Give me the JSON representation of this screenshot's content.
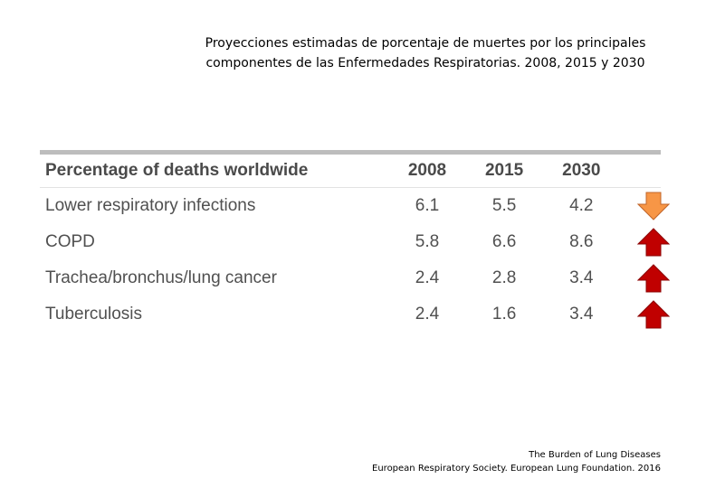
{
  "title": {
    "line1": "Proyecciones estimadas de porcentaje de muertes por los principales",
    "line2": "componentes de las Enfermedades Respiratorias. 2008, 2015 y 2030"
  },
  "table": {
    "header": {
      "label": "Percentage of deaths worldwide",
      "y2008": "2008",
      "y2015": "2015",
      "y2030": "2030"
    },
    "rows": [
      {
        "label": "Lower respiratory infections",
        "y2008": "6.1",
        "y2015": "5.5",
        "y2030": "4.2",
        "trend": "down"
      },
      {
        "label": "COPD",
        "y2008": "5.8",
        "y2015": "6.6",
        "y2030": "8.6",
        "trend": "up"
      },
      {
        "label": "Trachea/bronchus/lung cancer",
        "y2008": "2.4",
        "y2015": "2.8",
        "y2030": "3.4",
        "trend": "up"
      },
      {
        "label": "Tuberculosis",
        "y2008": "2.4",
        "y2015": "1.6",
        "y2030": "3.4",
        "trend": "up"
      }
    ]
  },
  "colors": {
    "arrow_down": "#f79646",
    "arrow_up": "#c00000",
    "table_text": "#505050",
    "rule": "#bdbdbd"
  },
  "icons": {
    "down": "arrow-down-icon",
    "up": "arrow-up-icon"
  },
  "source": {
    "line1": "The Burden of Lung Diseases",
    "line2": "European Respiratory Society. European Lung Foundation. 2016"
  }
}
